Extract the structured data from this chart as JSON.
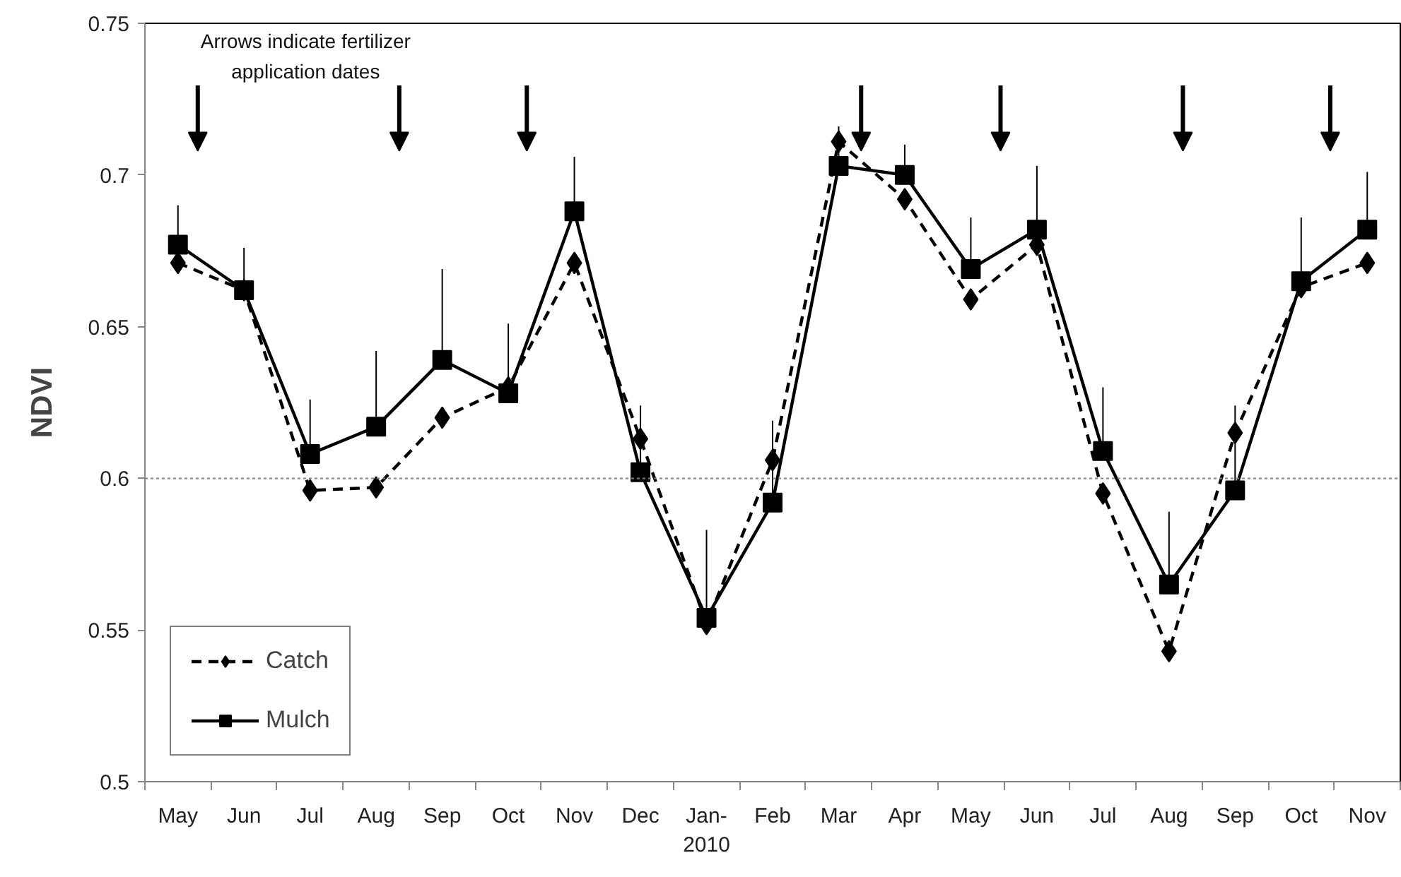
{
  "chart_data": {
    "type": "line",
    "ylabel": "NDVI",
    "categories": [
      "May",
      "Jun",
      "Jul",
      "Aug",
      "Sep",
      "Oct",
      "Nov",
      "Dec",
      "Jan-\n2010",
      "Feb",
      "Mar",
      "Apr",
      "May",
      "Jun",
      "Jul",
      "Aug",
      "Sep",
      "Oct",
      "Nov"
    ],
    "ylim": [
      0.5,
      0.75
    ],
    "yticks": [
      0.5,
      0.55,
      0.6,
      0.65,
      0.7,
      0.75
    ],
    "series": [
      {
        "name": "Catch",
        "color": "#000000",
        "marker": "diamond",
        "line_style": "dashed",
        "values": [
          0.671,
          0.662,
          0.596,
          0.597,
          0.62,
          0.63,
          0.671,
          0.613,
          0.552,
          0.606,
          0.711,
          0.692,
          0.659,
          0.677,
          0.595,
          0.543,
          0.615,
          0.663,
          0.671
        ]
      },
      {
        "name": "Mulch",
        "color": "#000000",
        "marker": "square",
        "line_style": "solid",
        "values": [
          0.677,
          0.662,
          0.608,
          0.617,
          0.639,
          0.628,
          0.688,
          0.602,
          0.554,
          0.592,
          0.703,
          0.7,
          0.669,
          0.682,
          0.609,
          0.565,
          0.596,
          0.665,
          0.682
        ],
        "errors": [
          [
            0.677,
            0.69
          ],
          [
            0.662,
            0.676
          ],
          [
            0.608,
            0.626
          ],
          [
            0.617,
            0.642
          ],
          [
            0.639,
            0.669
          ],
          [
            0.628,
            0.651
          ],
          [
            0.688,
            0.706
          ],
          [
            0.602,
            0.624
          ],
          [
            0.554,
            0.583
          ],
          [
            0.592,
            0.619
          ],
          [
            0.703,
            0.716
          ],
          [
            0.7,
            0.71
          ],
          [
            0.669,
            0.686
          ],
          [
            0.682,
            0.703
          ],
          [
            0.609,
            0.63
          ],
          [
            0.565,
            0.589
          ],
          [
            0.596,
            0.624
          ],
          [
            0.665,
            0.686
          ],
          [
            0.682,
            0.701
          ]
        ]
      }
    ],
    "ref_lines": [
      {
        "axis": "y",
        "value": 0.6,
        "color": "#808080",
        "line_style": "dotted"
      }
    ],
    "annotations": [
      "Arrows indicate fertilizer\napplication dates"
    ],
    "legend": "bottom left",
    "grid": false
  }
}
